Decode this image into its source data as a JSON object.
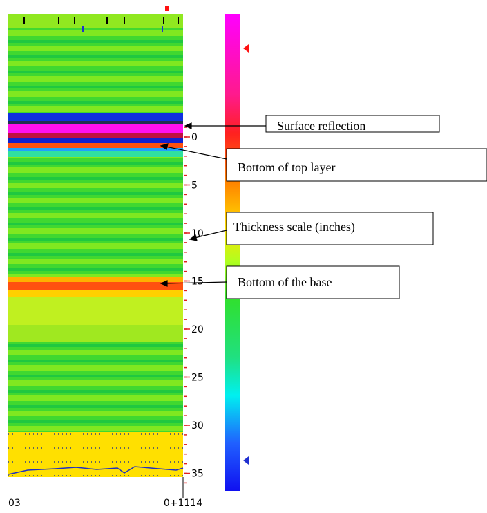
{
  "depth_scale": {
    "ticks": [
      0,
      5,
      10,
      15,
      20,
      25,
      30,
      35
    ]
  },
  "distance_labels": [
    "03",
    "0+1114"
  ],
  "annotations": [
    "Surface reflection",
    "Bottom of top layer",
    "Thickness scale (inches)",
    "Bottom of the base"
  ]
}
